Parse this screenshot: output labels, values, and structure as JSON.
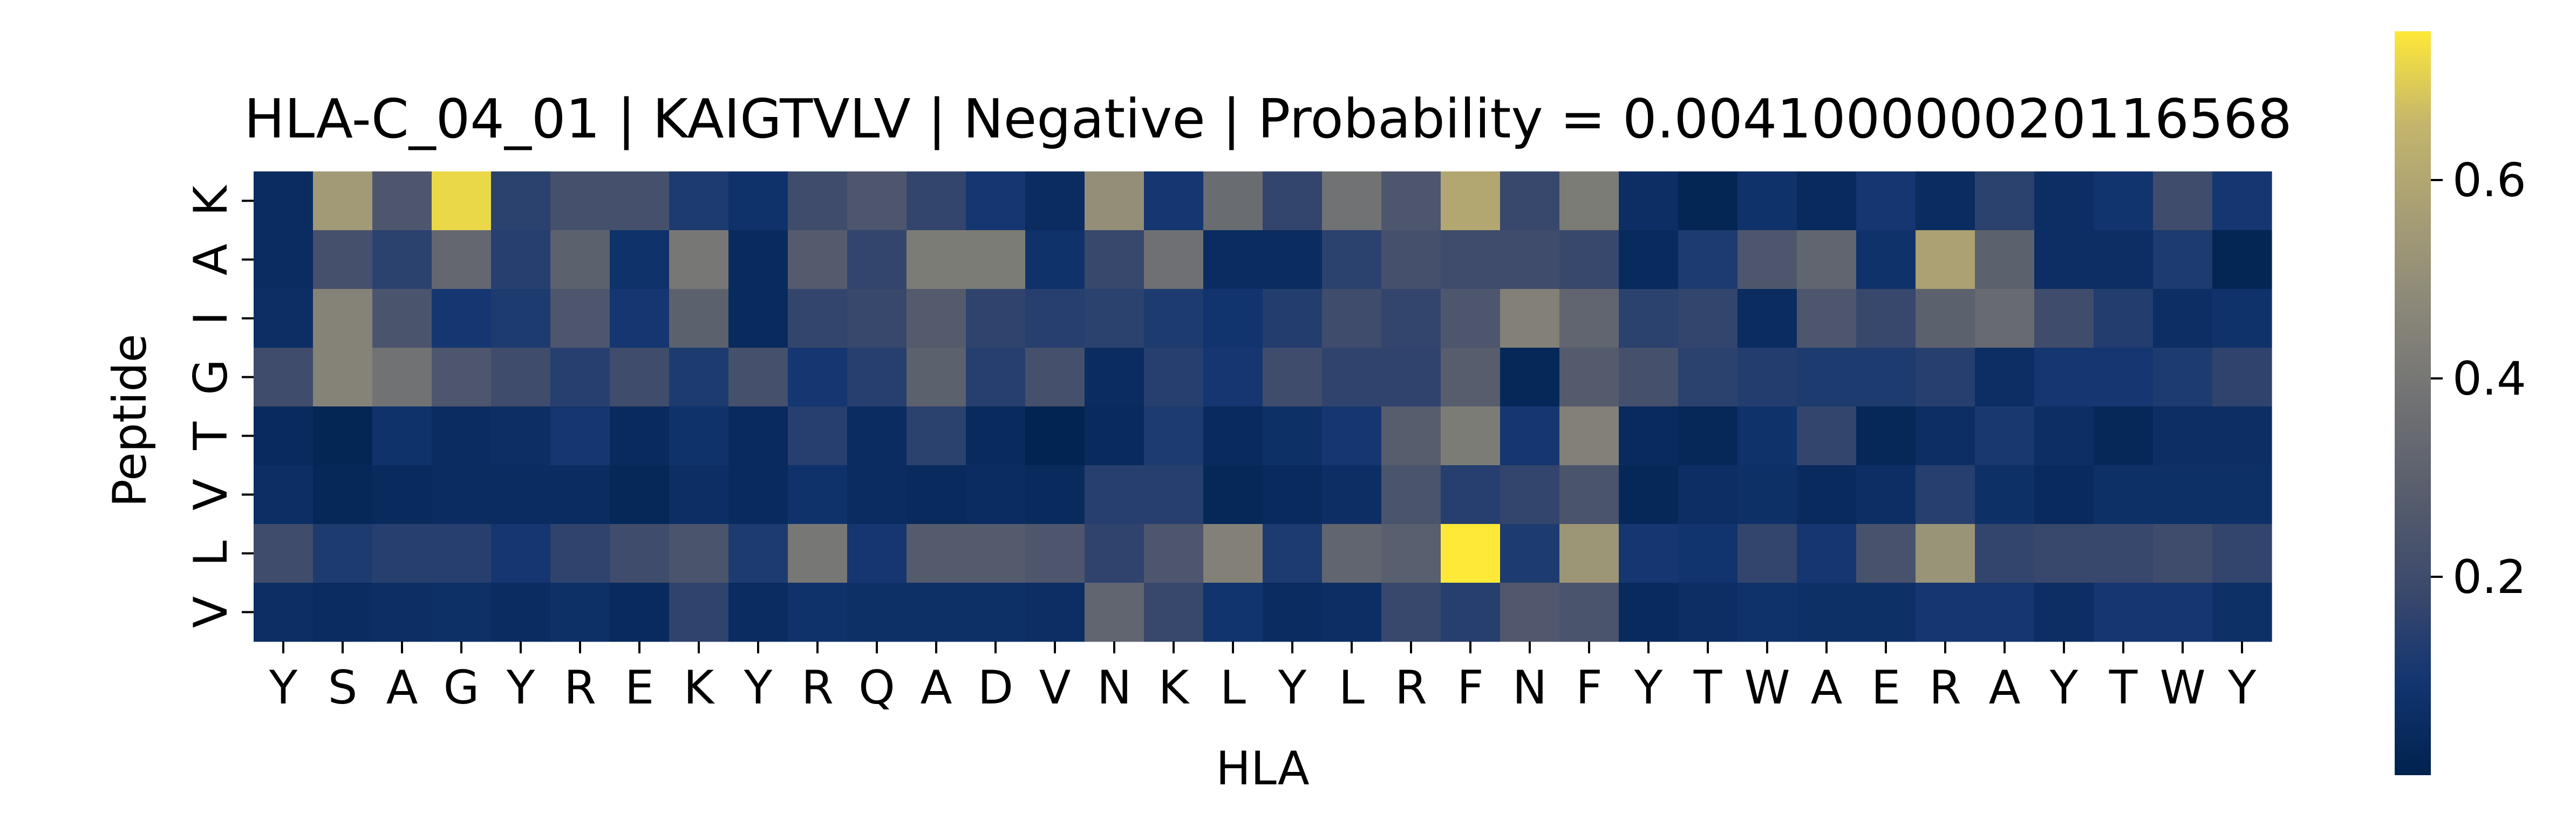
{
  "chart_data": {
    "type": "heatmap",
    "title": "HLA-C_04_01 | KAIGTVLV | Negative | Probability = 0.004100000020116568",
    "xlabel": "HLA",
    "ylabel": "Peptide",
    "x_categories": [
      "Y",
      "S",
      "A",
      "G",
      "Y",
      "R",
      "E",
      "K",
      "Y",
      "R",
      "Q",
      "A",
      "D",
      "V",
      "N",
      "K",
      "L",
      "Y",
      "L",
      "R",
      "F",
      "N",
      "F",
      "Y",
      "T",
      "W",
      "A",
      "E",
      "R",
      "A",
      "Y",
      "T",
      "W",
      "Y"
    ],
    "y_categories": [
      "K",
      "A",
      "I",
      "G",
      "T",
      "V",
      "L",
      "V"
    ],
    "values": [
      [
        0.05,
        0.55,
        0.25,
        0.72,
        0.15,
        0.22,
        0.22,
        0.12,
        0.08,
        0.2,
        0.25,
        0.17,
        0.1,
        0.05,
        0.5,
        0.1,
        0.35,
        0.17,
        0.38,
        0.25,
        0.6,
        0.18,
        0.42,
        0.06,
        0.02,
        0.08,
        0.04,
        0.1,
        0.05,
        0.15,
        0.06,
        0.09,
        0.2,
        0.1
      ],
      [
        0.05,
        0.22,
        0.15,
        0.33,
        0.14,
        0.3,
        0.08,
        0.4,
        0.04,
        0.27,
        0.17,
        0.42,
        0.42,
        0.08,
        0.18,
        0.37,
        0.05,
        0.05,
        0.15,
        0.22,
        0.2,
        0.2,
        0.18,
        0.04,
        0.12,
        0.25,
        0.32,
        0.08,
        0.58,
        0.3,
        0.06,
        0.06,
        0.12,
        0.02
      ],
      [
        0.06,
        0.45,
        0.24,
        0.1,
        0.12,
        0.25,
        0.1,
        0.3,
        0.04,
        0.17,
        0.18,
        0.27,
        0.16,
        0.14,
        0.15,
        0.12,
        0.09,
        0.13,
        0.2,
        0.17,
        0.25,
        0.44,
        0.32,
        0.15,
        0.17,
        0.05,
        0.25,
        0.18,
        0.3,
        0.34,
        0.2,
        0.13,
        0.06,
        0.08
      ],
      [
        0.2,
        0.45,
        0.38,
        0.25,
        0.2,
        0.14,
        0.2,
        0.12,
        0.22,
        0.1,
        0.14,
        0.3,
        0.14,
        0.22,
        0.05,
        0.14,
        0.1,
        0.2,
        0.16,
        0.16,
        0.28,
        0.03,
        0.27,
        0.22,
        0.15,
        0.13,
        0.12,
        0.12,
        0.14,
        0.06,
        0.1,
        0.1,
        0.12,
        0.16
      ],
      [
        0.04,
        0.02,
        0.08,
        0.05,
        0.06,
        0.1,
        0.04,
        0.08,
        0.04,
        0.14,
        0.05,
        0.15,
        0.04,
        0.01,
        0.04,
        0.12,
        0.04,
        0.07,
        0.1,
        0.28,
        0.42,
        0.1,
        0.44,
        0.04,
        0.03,
        0.08,
        0.17,
        0.03,
        0.06,
        0.11,
        0.06,
        0.03,
        0.06,
        0.06
      ],
      [
        0.06,
        0.03,
        0.04,
        0.05,
        0.05,
        0.05,
        0.03,
        0.06,
        0.04,
        0.08,
        0.05,
        0.04,
        0.05,
        0.04,
        0.14,
        0.14,
        0.03,
        0.04,
        0.06,
        0.24,
        0.14,
        0.17,
        0.24,
        0.03,
        0.06,
        0.07,
        0.04,
        0.06,
        0.14,
        0.07,
        0.04,
        0.07,
        0.07,
        0.07
      ],
      [
        0.2,
        0.12,
        0.14,
        0.14,
        0.1,
        0.16,
        0.2,
        0.24,
        0.12,
        0.4,
        0.1,
        0.27,
        0.27,
        0.25,
        0.16,
        0.25,
        0.44,
        0.12,
        0.32,
        0.29,
        0.75,
        0.12,
        0.53,
        0.1,
        0.09,
        0.17,
        0.1,
        0.23,
        0.52,
        0.17,
        0.18,
        0.18,
        0.2,
        0.17
      ],
      [
        0.06,
        0.05,
        0.06,
        0.07,
        0.05,
        0.07,
        0.04,
        0.16,
        0.05,
        0.08,
        0.07,
        0.07,
        0.07,
        0.06,
        0.32,
        0.18,
        0.09,
        0.05,
        0.06,
        0.18,
        0.14,
        0.26,
        0.24,
        0.04,
        0.06,
        0.08,
        0.07,
        0.07,
        0.1,
        0.1,
        0.06,
        0.1,
        0.1,
        0.07
      ]
    ],
    "colormap": "cividis",
    "colorbar": {
      "min": 0.0,
      "max": 0.75,
      "ticks": [
        0.2,
        0.4,
        0.6
      ],
      "tick_labels": [
        "0.2",
        "0.4",
        "0.6"
      ]
    },
    "grid": false
  }
}
